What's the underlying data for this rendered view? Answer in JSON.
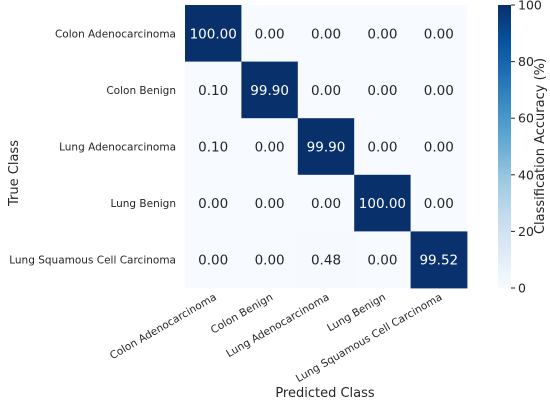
{
  "chart_data": {
    "type": "heatmap",
    "title": "",
    "xlabel": "Predicted Class",
    "ylabel": "True Class",
    "categories": [
      "Colon Adenocarcinoma",
      "Colon Benign",
      "Lung Adenocarcinoma",
      "Lung Benign",
      "Lung Squamous Cell Carcinoma"
    ],
    "matrix": [
      [
        100.0,
        0.0,
        0.0,
        0.0,
        0.0
      ],
      [
        0.1,
        99.9,
        0.0,
        0.0,
        0.0
      ],
      [
        0.1,
        0.0,
        99.9,
        0.0,
        0.0
      ],
      [
        0.0,
        0.0,
        0.0,
        100.0,
        0.0
      ],
      [
        0.0,
        0.0,
        0.48,
        0.0,
        99.52
      ]
    ],
    "value_format": "2 decimals",
    "colorbar": {
      "label": "Classification Accuracy (%)",
      "range": [
        0,
        100
      ],
      "ticks": [
        0,
        20,
        40,
        60,
        80,
        100
      ],
      "colormap": "Blues",
      "low_color": "#f7fbff",
      "high_color": "#08306b"
    }
  }
}
